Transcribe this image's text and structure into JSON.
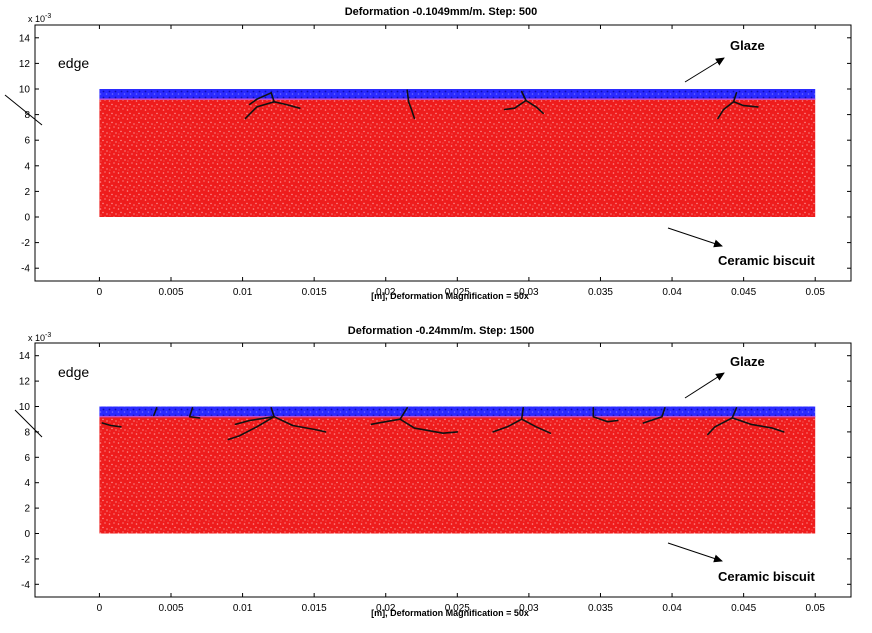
{
  "colors": {
    "biscuit": "#ee1c1c",
    "biscuit_light": "#ff7a7a",
    "glaze": "#2a2aff",
    "glaze_dark": "#0d0db0",
    "interface": "#c24cc8",
    "crack": "#111111",
    "axis": "#000000"
  },
  "chart_data": [
    {
      "type": "scatter",
      "title": "Deformation -0.1049mm/m. Step: 500",
      "xlabel": "[m], Deformation Magnification = 50x",
      "ylabel": "",
      "y_exponent_label": "x 10",
      "y_exponent_power": "-3",
      "xlim": [
        -0.0045,
        0.0525
      ],
      "ylim": [
        -5,
        15
      ],
      "x_ticks": [
        0,
        0.005,
        0.01,
        0.015,
        0.02,
        0.025,
        0.03,
        0.035,
        0.04,
        0.045,
        0.05
      ],
      "x_tick_labels": [
        "0",
        "0.005",
        "0.01",
        "0.015",
        "0.02",
        "0.025",
        "0.03",
        "0.035",
        "0.04",
        "0.045",
        "0.05"
      ],
      "y_ticks": [
        -4,
        -2,
        0,
        2,
        4,
        6,
        8,
        10,
        12,
        14
      ],
      "y_tick_labels": [
        "-4",
        "-2",
        "0",
        "2",
        "4",
        "6",
        "8",
        "10",
        "12",
        "14"
      ],
      "grid": false,
      "series": [
        {
          "name": "Ceramic biscuit",
          "region": {
            "x": [
              0,
              0.05
            ],
            "y": [
              0,
              9.2
            ]
          }
        },
        {
          "name": "Glaze",
          "region": {
            "x": [
              0,
              0.05
            ],
            "y": [
              9.2,
              10.0
            ]
          }
        }
      ],
      "cracks": [
        [
          [
            0.012,
            9.7
          ],
          [
            0.0122,
            9.0
          ],
          [
            0.011,
            8.6
          ],
          [
            0.0102,
            7.7
          ]
        ],
        [
          [
            0.0122,
            9.0
          ],
          [
            0.013,
            8.8
          ],
          [
            0.014,
            8.5
          ]
        ],
        [
          [
            0.012,
            9.7
          ],
          [
            0.011,
            9.2
          ],
          [
            0.0105,
            8.8
          ]
        ],
        [
          [
            0.0215,
            9.9
          ],
          [
            0.0216,
            9.0
          ],
          [
            0.0218,
            8.4
          ],
          [
            0.022,
            7.7
          ]
        ],
        [
          [
            0.0295,
            9.8
          ],
          [
            0.0298,
            9.1
          ],
          [
            0.029,
            8.5
          ],
          [
            0.0283,
            8.4
          ]
        ],
        [
          [
            0.0298,
            9.1
          ],
          [
            0.0305,
            8.6
          ],
          [
            0.031,
            8.1
          ]
        ],
        [
          [
            0.0445,
            9.7
          ],
          [
            0.0443,
            9.0
          ],
          [
            0.0436,
            8.4
          ],
          [
            0.0432,
            7.7
          ]
        ],
        [
          [
            0.0443,
            9.0
          ],
          [
            0.045,
            8.7
          ],
          [
            0.046,
            8.6
          ]
        ]
      ],
      "annotations": [
        {
          "text": "Glaze",
          "anchor": "right"
        },
        {
          "text": "Ceramic biscuit",
          "anchor": "right"
        },
        {
          "text": "edge",
          "anchor": "left"
        }
      ]
    },
    {
      "type": "scatter",
      "title": "Deformation -0.24mm/m. Step: 1500",
      "xlabel": "[m], Deformation Magnification = 50x",
      "ylabel": "",
      "y_exponent_label": "x 10",
      "y_exponent_power": "-3",
      "xlim": [
        -0.0045,
        0.0525
      ],
      "ylim": [
        -5,
        15
      ],
      "x_ticks": [
        0,
        0.005,
        0.01,
        0.015,
        0.02,
        0.025,
        0.03,
        0.035,
        0.04,
        0.045,
        0.05
      ],
      "x_tick_labels": [
        "0",
        "0.005",
        "0.01",
        "0.015",
        "0.02",
        "0.025",
        "0.03",
        "0.035",
        "0.04",
        "0.045",
        "0.05"
      ],
      "y_ticks": [
        -4,
        -2,
        0,
        2,
        4,
        6,
        8,
        10,
        12,
        14
      ],
      "y_tick_labels": [
        "-4",
        "-2",
        "0",
        "2",
        "4",
        "6",
        "8",
        "10",
        "12",
        "14"
      ],
      "grid": false,
      "series": [
        {
          "name": "Ceramic biscuit",
          "region": {
            "x": [
              0,
              0.05
            ],
            "y": [
              0,
              9.2
            ]
          }
        },
        {
          "name": "Glaze",
          "region": {
            "x": [
              0,
              0.05
            ],
            "y": [
              9.2,
              10.0
            ]
          }
        }
      ],
      "cracks": [
        [
          [
            0.0002,
            8.7
          ],
          [
            0.0008,
            8.5
          ],
          [
            0.0015,
            8.4
          ]
        ],
        [
          [
            0.004,
            9.9
          ],
          [
            0.0038,
            9.3
          ]
        ],
        [
          [
            0.0065,
            9.9
          ],
          [
            0.0063,
            9.2
          ],
          [
            0.007,
            9.1
          ]
        ],
        [
          [
            0.012,
            9.9
          ],
          [
            0.0122,
            9.2
          ],
          [
            0.011,
            8.4
          ],
          [
            0.0098,
            7.7
          ],
          [
            0.009,
            7.4
          ]
        ],
        [
          [
            0.0122,
            9.2
          ],
          [
            0.0135,
            8.5
          ],
          [
            0.015,
            8.2
          ],
          [
            0.0158,
            8.0
          ]
        ],
        [
          [
            0.0122,
            9.2
          ],
          [
            0.0105,
            8.9
          ],
          [
            0.0095,
            8.6
          ]
        ],
        [
          [
            0.0215,
            9.9
          ],
          [
            0.021,
            9.0
          ],
          [
            0.02,
            8.8
          ],
          [
            0.019,
            8.6
          ]
        ],
        [
          [
            0.021,
            9.0
          ],
          [
            0.022,
            8.3
          ],
          [
            0.024,
            7.9
          ],
          [
            0.025,
            8.0
          ]
        ],
        [
          [
            0.0296,
            9.9
          ],
          [
            0.0295,
            9.0
          ],
          [
            0.0285,
            8.4
          ],
          [
            0.0275,
            8.0
          ]
        ],
        [
          [
            0.0295,
            9.0
          ],
          [
            0.0305,
            8.4
          ],
          [
            0.0315,
            7.9
          ]
        ],
        [
          [
            0.0345,
            9.9
          ],
          [
            0.0345,
            9.2
          ],
          [
            0.0355,
            8.8
          ],
          [
            0.0362,
            8.9
          ]
        ],
        [
          [
            0.0395,
            9.9
          ],
          [
            0.0393,
            9.2
          ],
          [
            0.038,
            8.7
          ]
        ],
        [
          [
            0.0445,
            9.9
          ],
          [
            0.0442,
            9.1
          ],
          [
            0.043,
            8.4
          ],
          [
            0.0425,
            7.8
          ]
        ],
        [
          [
            0.0442,
            9.1
          ],
          [
            0.0455,
            8.6
          ],
          [
            0.047,
            8.3
          ],
          [
            0.0478,
            8.0
          ]
        ]
      ],
      "annotations": [
        {
          "text": "Glaze",
          "anchor": "right"
        },
        {
          "text": "Ceramic biscuit",
          "anchor": "right"
        },
        {
          "text": "edge",
          "anchor": "left"
        }
      ]
    }
  ]
}
